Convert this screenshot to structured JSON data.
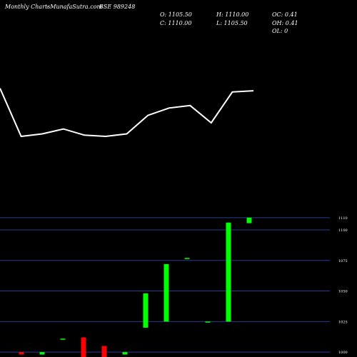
{
  "header": {
    "brand": "Monthly Charts",
    "site": "- MunafaSutra.com",
    "symbol": "BSE 989248",
    "open": "O: 1105.50",
    "close": "C: 1110.00",
    "high": "H: 1110.00",
    "low": "L: 1105.50",
    "oc": "OC: 0.41",
    "oh": "OH: 0.41",
    "ol": "OL: 0"
  },
  "colors": {
    "background": "#000000",
    "line": "#ffffff",
    "up": "#00ff00",
    "down": "#ff0000",
    "grid": "#2a3a8c"
  },
  "chart_data": [
    {
      "type": "line",
      "title": "",
      "x": [
        1,
        2,
        3,
        4,
        5,
        6,
        7,
        8,
        9,
        10,
        11,
        12,
        13
      ],
      "values": [
        1090,
        1051,
        1053,
        1057,
        1052,
        1051,
        1053,
        1068,
        1074,
        1076,
        1062,
        1087,
        1088
      ],
      "ylim": [
        1040,
        1095
      ]
    },
    {
      "type": "candlestick",
      "y_ticks": [
        1000,
        1025,
        1050,
        1075,
        1100,
        1110
      ],
      "ylim": [
        996,
        1114
      ],
      "candles": [
        {
          "open": 1000,
          "high": 1000,
          "low": 998,
          "close": 998
        },
        {
          "open": 998,
          "high": 1000,
          "low": 998,
          "close": 1000
        },
        {
          "open": 1011,
          "high": 1011,
          "low": 1011,
          "close": 1011
        },
        {
          "open": 1012,
          "high": 1012,
          "low": 996,
          "close": 996
        },
        {
          "open": 1005,
          "high": 1005,
          "low": 996,
          "close": 996
        },
        {
          "open": 998,
          "high": 1000,
          "low": 998,
          "close": 1000
        },
        {
          "open": 1020,
          "high": 1048,
          "low": 1020,
          "close": 1048
        },
        {
          "open": 1025,
          "high": 1072,
          "low": 1025,
          "close": 1072
        },
        {
          "open": 1077,
          "high": 1077,
          "low": 1077,
          "close": 1077
        },
        {
          "open": 1025,
          "high": 1025,
          "low": 1025,
          "close": 1025
        },
        {
          "open": 1025,
          "high": 1106,
          "low": 1025,
          "close": 1106
        },
        {
          "open": 1105.5,
          "high": 1110,
          "low": 1105.5,
          "close": 1110
        }
      ]
    }
  ]
}
